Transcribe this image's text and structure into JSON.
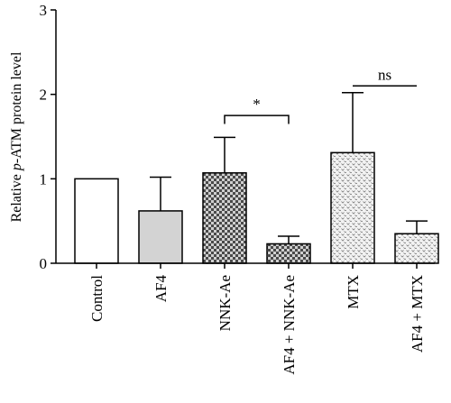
{
  "chart_data": {
    "type": "bar",
    "categories": [
      "Control",
      "AF4",
      "NNK-Ae",
      "AF4 + NNK-Ae",
      "MTX",
      "AF4 + MTX"
    ],
    "values": [
      1.0,
      0.62,
      1.07,
      0.23,
      1.31,
      0.35
    ],
    "errors": [
      0,
      0.4,
      0.42,
      0.09,
      0.71,
      0.15
    ],
    "bar_fills": [
      "white",
      "light-gray",
      "dark-checker",
      "dark-checker",
      "light-dots",
      "light-dots"
    ],
    "ylabel_prefix": "Relative ",
    "ylabel_italic": "p",
    "ylabel_suffix": "-ATM protein level",
    "ylim": [
      0,
      3
    ],
    "yticks": [
      "0",
      "1",
      "2",
      "3"
    ],
    "significance": [
      {
        "from": 2,
        "to": 3,
        "label": "*",
        "y": 1.75,
        "tick": 0.1
      },
      {
        "from": 4,
        "to": 5,
        "label": "ns",
        "y": 2.1,
        "tick": 0
      }
    ]
  },
  "colors": {
    "axis": "#000000",
    "gray_fill": "#d3d3d3"
  }
}
